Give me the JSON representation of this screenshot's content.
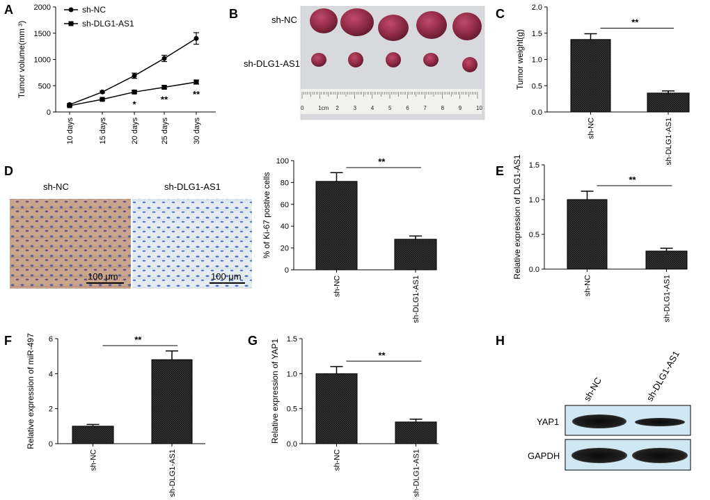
{
  "panels": {
    "A": "A",
    "B": "B",
    "C": "C",
    "D": "D",
    "E": "E",
    "F": "F",
    "G": "G",
    "H": "H"
  },
  "colors": {
    "bar_fill": "#2b2b2b",
    "ink": "#000000",
    "blot_bg": "#cfe8f4"
  },
  "chart_data": [
    {
      "id": "A",
      "type": "line",
      "ylabel": "Tumor volume(mm ³)",
      "ylim": [
        0,
        2000
      ],
      "yticks": [
        0,
        500,
        1000,
        1500,
        2000
      ],
      "categories": [
        "10 days",
        "15 days",
        "20 days",
        "25 days",
        "30 days"
      ],
      "series": [
        {
          "name": "sh-NC",
          "marker": "circle",
          "values": [
            140,
            380,
            690,
            1020,
            1400
          ],
          "errors": [
            20,
            20,
            50,
            60,
            110
          ]
        },
        {
          "name": "sh-DLG1-AS1",
          "marker": "square",
          "values": [
            120,
            240,
            380,
            470,
            570
          ],
          "errors": [
            15,
            20,
            25,
            30,
            40
          ]
        }
      ],
      "annotations": [
        "",
        "",
        "*",
        "**",
        "**"
      ]
    },
    {
      "id": "C",
      "type": "bar",
      "ylabel": "Tumor weight(g)",
      "ylim": [
        0,
        2.0
      ],
      "yticks": [
        "0.0",
        "0.5",
        "1.0",
        "1.5",
        "2.0"
      ],
      "categories": [
        "sh-NC",
        "sh-DLG1-AS1"
      ],
      "values": [
        1.38,
        0.36
      ],
      "errors": [
        0.11,
        0.04
      ],
      "significance": "**"
    },
    {
      "id": "D",
      "type": "bar",
      "ylabel": "% of Ki-67 postive cells",
      "ylim": [
        0,
        100
      ],
      "yticks": [
        "0",
        "20",
        "40",
        "60",
        "80",
        "100"
      ],
      "categories": [
        "sh-NC",
        "sh-DLG1-AS1"
      ],
      "values": [
        81,
        28
      ],
      "errors": [
        8,
        3
      ],
      "significance": "**"
    },
    {
      "id": "E",
      "type": "bar",
      "ylabel": "Relative expression of DLG1-AS1",
      "ylim": [
        0,
        1.5
      ],
      "yticks": [
        "0.0",
        "0.5",
        "1.0",
        "1.5"
      ],
      "categories": [
        "sh-NC",
        "sh-DLG1-AS1"
      ],
      "values": [
        1.0,
        0.26
      ],
      "errors": [
        0.12,
        0.04
      ],
      "significance": "**"
    },
    {
      "id": "F",
      "type": "bar",
      "ylabel": "Relative expression of miR-497",
      "ylim": [
        0,
        6
      ],
      "yticks": [
        "0",
        "2",
        "4",
        "6"
      ],
      "categories": [
        "sh-NC",
        "sh-DLG1-AS1"
      ],
      "values": [
        1.0,
        4.8
      ],
      "errors": [
        0.1,
        0.5
      ],
      "significance": "**"
    },
    {
      "id": "G",
      "type": "bar",
      "ylabel": "Relative expression of YAP1",
      "ylim": [
        0,
        1.5
      ],
      "yticks": [
        "0.0",
        "0.5",
        "1.0",
        "1.5"
      ],
      "categories": [
        "sh-NC",
        "sh-DLG1-AS1"
      ],
      "values": [
        1.0,
        0.31
      ],
      "errors": [
        0.1,
        0.04
      ],
      "significance": "**"
    }
  ],
  "photo_B": {
    "row_labels": [
      "sh-NC",
      "sh-DLG1-AS1"
    ],
    "ruler_numbers": [
      "0",
      "1cm",
      "2",
      "3",
      "4",
      "5",
      "6",
      "7",
      "8",
      "9",
      "10"
    ]
  },
  "photo_D": {
    "labels": [
      "sh-NC",
      "sh-DLG1-AS1"
    ],
    "scale_bar": "100 μm"
  },
  "blot_H": {
    "lanes": [
      "sh-NC",
      "sh-DLG1-AS1"
    ],
    "rows": [
      "YAP1",
      "GAPDH"
    ]
  }
}
